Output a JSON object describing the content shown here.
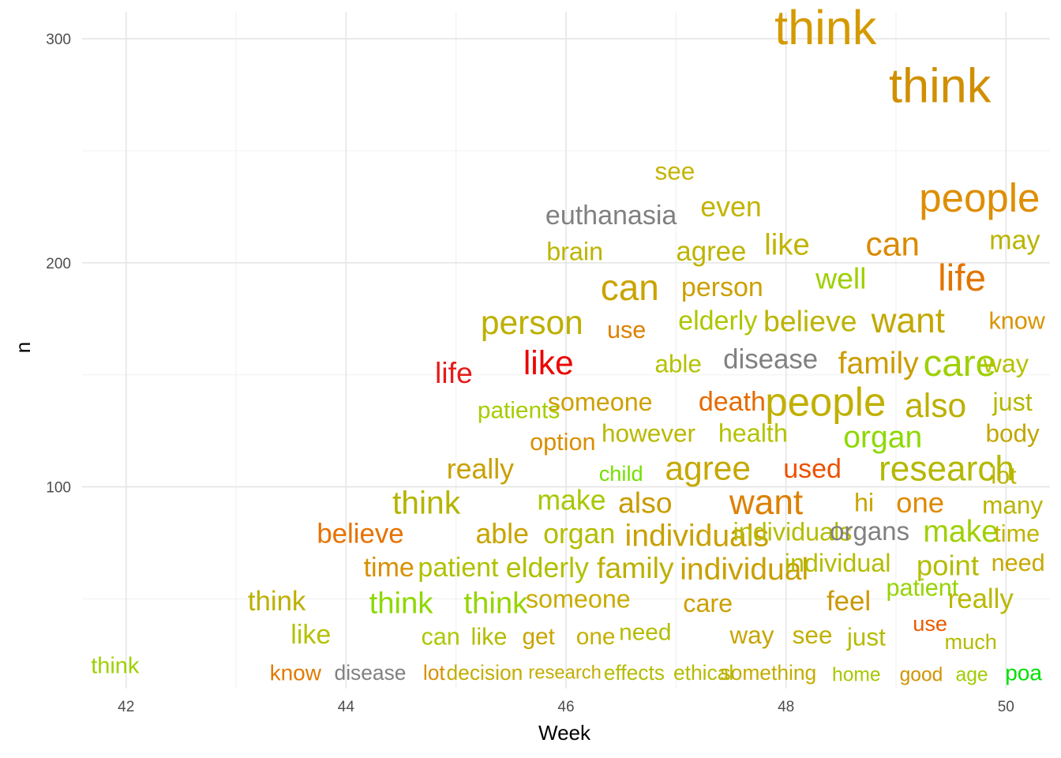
{
  "chart_data": {
    "type": "scatter",
    "title": "",
    "xlabel": "Week",
    "ylabel": "n",
    "xlim": [
      41.6,
      50.4
    ],
    "ylim": [
      10,
      312
    ],
    "x_ticks": [
      42,
      44,
      46,
      48,
      50
    ],
    "y_ticks": [
      100,
      200,
      300
    ],
    "grid": true,
    "legend": "none",
    "points": [
      {
        "label": "think",
        "x": 48.36,
        "y": 305,
        "size": 3.6,
        "color": "#d49a00"
      },
      {
        "label": "think",
        "x": 49.4,
        "y": 279,
        "size": 3.6,
        "color": "#d08f00"
      },
      {
        "label": "see",
        "x": 46.99,
        "y": 241,
        "size": 1.85,
        "color": "#c4b400"
      },
      {
        "label": "people",
        "x": 49.76,
        "y": 229,
        "size": 3.0,
        "color": "#de8e00"
      },
      {
        "label": "euthanasia",
        "x": 46.41,
        "y": 221,
        "size": 2.0,
        "color": "#808080"
      },
      {
        "label": "even",
        "x": 47.5,
        "y": 225,
        "size": 2.1,
        "color": "#c2b400"
      },
      {
        "label": "brain",
        "x": 46.08,
        "y": 205,
        "size": 1.9,
        "color": "#bcb400"
      },
      {
        "label": "agree",
        "x": 47.32,
        "y": 205,
        "size": 2.05,
        "color": "#bcb400"
      },
      {
        "label": "like",
        "x": 48.01,
        "y": 208,
        "size": 2.25,
        "color": "#c0b400"
      },
      {
        "label": "can",
        "x": 48.97,
        "y": 208,
        "size": 2.5,
        "color": "#da8a00"
      },
      {
        "label": "may",
        "x": 50.08,
        "y": 210,
        "size": 2.0,
        "color": "#b9b400"
      },
      {
        "label": "can",
        "x": 46.58,
        "y": 189,
        "size": 2.7,
        "color": "#c9a400"
      },
      {
        "label": "person",
        "x": 47.42,
        "y": 189,
        "size": 2.0,
        "color": "#cca000"
      },
      {
        "label": "well",
        "x": 48.5,
        "y": 193,
        "size": 2.2,
        "color": "#9ed000"
      },
      {
        "label": "life",
        "x": 49.6,
        "y": 193,
        "size": 2.8,
        "color": "#e27400"
      },
      {
        "label": "person",
        "x": 45.69,
        "y": 173,
        "size": 2.5,
        "color": "#bcb000"
      },
      {
        "label": "use",
        "x": 46.55,
        "y": 170,
        "size": 1.8,
        "color": "#de8000"
      },
      {
        "label": "elderly",
        "x": 47.38,
        "y": 174,
        "size": 2.0,
        "color": "#aec600"
      },
      {
        "label": "believe",
        "x": 48.22,
        "y": 174,
        "size": 2.2,
        "color": "#bcb400"
      },
      {
        "label": "want",
        "x": 49.11,
        "y": 174,
        "size": 2.6,
        "color": "#c3a800"
      },
      {
        "label": "know",
        "x": 50.1,
        "y": 174,
        "size": 1.8,
        "color": "#d89400"
      },
      {
        "label": "life",
        "x": 44.98,
        "y": 151,
        "size": 2.2,
        "color": "#e61a1a"
      },
      {
        "label": "like",
        "x": 45.84,
        "y": 155,
        "size": 2.5,
        "color": "#ec0000"
      },
      {
        "label": "able",
        "x": 47.02,
        "y": 155,
        "size": 1.85,
        "color": "#b4c200"
      },
      {
        "label": "disease",
        "x": 47.86,
        "y": 157,
        "size": 2.05,
        "color": "#808080"
      },
      {
        "label": "family",
        "x": 48.84,
        "y": 155,
        "size": 2.3,
        "color": "#cc9c00"
      },
      {
        "label": "care",
        "x": 49.58,
        "y": 155,
        "size": 2.8,
        "color": "#9ed000"
      },
      {
        "label": "way",
        "x": 50.0,
        "y": 155,
        "size": 1.9,
        "color": "#b5c200"
      },
      {
        "label": "patients",
        "x": 45.57,
        "y": 134,
        "size": 1.75,
        "color": "#a6cc00"
      },
      {
        "label": "someone",
        "x": 46.31,
        "y": 138,
        "size": 1.9,
        "color": "#cfa000"
      },
      {
        "label": "death",
        "x": 47.51,
        "y": 138,
        "size": 2.0,
        "color": "#e46a00"
      },
      {
        "label": "people",
        "x": 48.36,
        "y": 138,
        "size": 3.0,
        "color": "#c0b000"
      },
      {
        "label": "also",
        "x": 49.36,
        "y": 136,
        "size": 2.5,
        "color": "#bcb000"
      },
      {
        "label": "just",
        "x": 50.06,
        "y": 138,
        "size": 1.9,
        "color": "#b4b800"
      },
      {
        "label": "option",
        "x": 45.97,
        "y": 120,
        "size": 1.8,
        "color": "#da8e00"
      },
      {
        "label": "however",
        "x": 46.75,
        "y": 124,
        "size": 1.85,
        "color": "#b9b800"
      },
      {
        "label": "health",
        "x": 47.7,
        "y": 124,
        "size": 1.9,
        "color": "#b4c200"
      },
      {
        "label": "organ",
        "x": 48.88,
        "y": 122,
        "size": 2.3,
        "color": "#8ed800"
      },
      {
        "label": "body",
        "x": 50.06,
        "y": 124,
        "size": 1.85,
        "color": "#c0a600"
      },
      {
        "label": "really",
        "x": 45.22,
        "y": 108,
        "size": 2.1,
        "color": "#c8a000"
      },
      {
        "label": "child",
        "x": 46.5,
        "y": 106,
        "size": 1.6,
        "color": "#76e000"
      },
      {
        "label": "agree",
        "x": 47.29,
        "y": 108,
        "size": 2.5,
        "color": "#c4a800"
      },
      {
        "label": "used",
        "x": 48.24,
        "y": 108,
        "size": 2.0,
        "color": "#ec5000"
      },
      {
        "label": "research",
        "x": 49.46,
        "y": 108,
        "size": 2.6,
        "color": "#b4b800"
      },
      {
        "label": "lot",
        "x": 49.98,
        "y": 105,
        "size": 1.8,
        "color": "#bcb400"
      },
      {
        "label": "think",
        "x": 44.73,
        "y": 93,
        "size": 2.4,
        "color": "#b4b400"
      },
      {
        "label": "make",
        "x": 46.05,
        "y": 94,
        "size": 2.1,
        "color": "#a6c800"
      },
      {
        "label": "also",
        "x": 46.72,
        "y": 93,
        "size": 2.2,
        "color": "#c89c00"
      },
      {
        "label": "want",
        "x": 47.82,
        "y": 93,
        "size": 2.6,
        "color": "#dd8000"
      },
      {
        "label": "hi",
        "x": 48.71,
        "y": 93,
        "size": 1.9,
        "color": "#c4a600"
      },
      {
        "label": "one",
        "x": 49.22,
        "y": 93,
        "size": 2.15,
        "color": "#dd8a00"
      },
      {
        "label": "many",
        "x": 50.06,
        "y": 92,
        "size": 1.85,
        "color": "#bab400"
      },
      {
        "label": "believe",
        "x": 44.13,
        "y": 79,
        "size": 2.05,
        "color": "#e67200"
      },
      {
        "label": "able",
        "x": 45.42,
        "y": 79,
        "size": 2.1,
        "color": "#c8a400"
      },
      {
        "label": "organ",
        "x": 46.12,
        "y": 79,
        "size": 2.1,
        "color": "#b4bc00"
      },
      {
        "label": "individuals",
        "x": 47.19,
        "y": 78,
        "size": 2.3,
        "color": "#c8a000"
      },
      {
        "label": "individuals",
        "x": 48.06,
        "y": 80,
        "size": 1.9,
        "color": "#b4bc00"
      },
      {
        "label": "organs",
        "x": 48.76,
        "y": 80,
        "size": 1.95,
        "color": "#808080"
      },
      {
        "label": "make",
        "x": 49.59,
        "y": 80,
        "size": 2.3,
        "color": "#9ed000"
      },
      {
        "label": "time",
        "x": 50.1,
        "y": 79,
        "size": 1.8,
        "color": "#c0b400"
      },
      {
        "label": "time",
        "x": 44.39,
        "y": 64,
        "size": 2.0,
        "color": "#d89000"
      },
      {
        "label": "patient",
        "x": 45.02,
        "y": 64,
        "size": 2.0,
        "color": "#b0c000"
      },
      {
        "label": "elderly",
        "x": 45.83,
        "y": 64,
        "size": 2.1,
        "color": "#b0c000"
      },
      {
        "label": "family",
        "x": 46.63,
        "y": 64,
        "size": 2.2,
        "color": "#bcb000"
      },
      {
        "label": "individual",
        "x": 47.62,
        "y": 63,
        "size": 2.3,
        "color": "#c8a000"
      },
      {
        "label": "individual",
        "x": 48.47,
        "y": 66,
        "size": 1.9,
        "color": "#b4bc00"
      },
      {
        "label": "point",
        "x": 49.47,
        "y": 65,
        "size": 2.15,
        "color": "#b4bc00"
      },
      {
        "label": "need",
        "x": 50.11,
        "y": 66,
        "size": 1.8,
        "color": "#c8a800"
      },
      {
        "label": "think",
        "x": 43.37,
        "y": 49,
        "size": 2.05,
        "color": "#bcb000"
      },
      {
        "label": "think",
        "x": 44.5,
        "y": 48,
        "size": 2.25,
        "color": "#8ed800"
      },
      {
        "label": "think",
        "x": 45.36,
        "y": 48,
        "size": 2.25,
        "color": "#96d400"
      },
      {
        "label": "someone",
        "x": 46.11,
        "y": 50,
        "size": 1.9,
        "color": "#c8ac00"
      },
      {
        "label": "care",
        "x": 47.29,
        "y": 48,
        "size": 1.9,
        "color": "#cca000"
      },
      {
        "label": "feel",
        "x": 48.57,
        "y": 49,
        "size": 2.05,
        "color": "#cc9800"
      },
      {
        "label": "patient",
        "x": 49.24,
        "y": 55,
        "size": 1.8,
        "color": "#96d400"
      },
      {
        "label": "really",
        "x": 49.77,
        "y": 50,
        "size": 2.05,
        "color": "#b9b800"
      },
      {
        "label": "like",
        "x": 43.68,
        "y": 34,
        "size": 2.0,
        "color": "#b4c200"
      },
      {
        "label": "can",
        "x": 44.86,
        "y": 33,
        "size": 1.8,
        "color": "#aec800"
      },
      {
        "label": "like",
        "x": 45.3,
        "y": 33,
        "size": 1.8,
        "color": "#b4bc00"
      },
      {
        "label": "get",
        "x": 45.75,
        "y": 33,
        "size": 1.75,
        "color": "#c8a400"
      },
      {
        "label": "one",
        "x": 46.27,
        "y": 33,
        "size": 1.75,
        "color": "#c4b000"
      },
      {
        "label": "need",
        "x": 46.72,
        "y": 35,
        "size": 1.75,
        "color": "#b4bc00"
      },
      {
        "label": "way",
        "x": 47.69,
        "y": 34,
        "size": 1.85,
        "color": "#c8a400"
      },
      {
        "label": "see",
        "x": 48.24,
        "y": 34,
        "size": 1.85,
        "color": "#c0b000"
      },
      {
        "label": "just",
        "x": 48.73,
        "y": 33,
        "size": 1.85,
        "color": "#b4bc00"
      },
      {
        "label": "use",
        "x": 49.31,
        "y": 39,
        "size": 1.6,
        "color": "#e85a00"
      },
      {
        "label": "much",
        "x": 49.68,
        "y": 31,
        "size": 1.6,
        "color": "#b4bc00"
      },
      {
        "label": "think",
        "x": 41.9,
        "y": 20,
        "size": 1.7,
        "color": "#9ed000"
      },
      {
        "label": "know",
        "x": 43.54,
        "y": 17,
        "size": 1.65,
        "color": "#e27a00"
      },
      {
        "label": "disease",
        "x": 44.22,
        "y": 17,
        "size": 1.55,
        "color": "#808080"
      },
      {
        "label": "lot",
        "x": 44.8,
        "y": 17,
        "size": 1.55,
        "color": "#d89000"
      },
      {
        "label": "decision",
        "x": 45.26,
        "y": 17,
        "size": 1.55,
        "color": "#c4ac00"
      },
      {
        "label": "research",
        "x": 45.99,
        "y": 17,
        "size": 1.4,
        "color": "#c4ac00"
      },
      {
        "label": "effects",
        "x": 46.62,
        "y": 17,
        "size": 1.55,
        "color": "#b4bc00"
      },
      {
        "label": "ethical",
        "x": 47.25,
        "y": 17,
        "size": 1.55,
        "color": "#b4bc00"
      },
      {
        "label": "something",
        "x": 47.84,
        "y": 17,
        "size": 1.55,
        "color": "#c4ac00"
      },
      {
        "label": "home",
        "x": 48.64,
        "y": 16,
        "size": 1.45,
        "color": "#a6c800"
      },
      {
        "label": "good",
        "x": 49.23,
        "y": 16,
        "size": 1.45,
        "color": "#d09400"
      },
      {
        "label": "age",
        "x": 49.69,
        "y": 16,
        "size": 1.45,
        "color": "#a0cc00"
      },
      {
        "label": "poa",
        "x": 50.16,
        "y": 17,
        "size": 1.65,
        "color": "#00e000"
      }
    ]
  }
}
